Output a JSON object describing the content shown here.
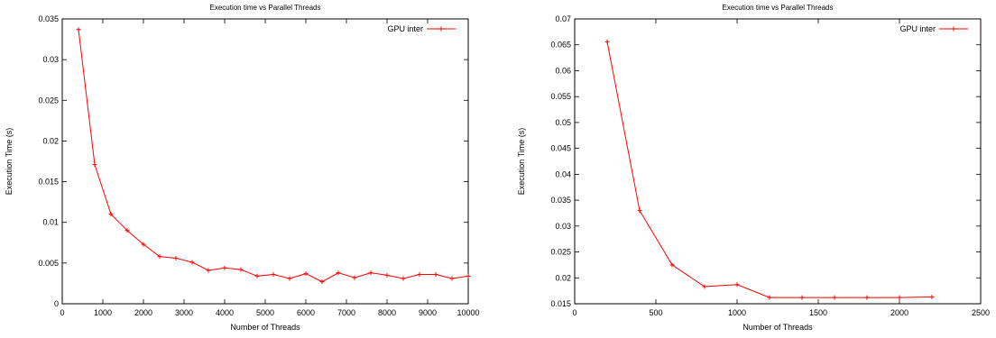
{
  "chart_data": [
    {
      "type": "line",
      "title": "Execution time vs Parallel Threads",
      "xlabel": "Number of Threads",
      "ylabel": "Execution Time (s)",
      "xlim": [
        0,
        10000
      ],
      "ylim": [
        0,
        0.035
      ],
      "xticks": [
        0,
        1000,
        2000,
        3000,
        4000,
        5000,
        6000,
        7000,
        8000,
        9000,
        10000
      ],
      "xtick_labels": [
        "0",
        "1000",
        "2000",
        "3000",
        "4000",
        "5000",
        "6000",
        "7000",
        "8000",
        "9000",
        "10000"
      ],
      "yticks": [
        0,
        0.005,
        0.01,
        0.015,
        0.02,
        0.025,
        0.03,
        0.035
      ],
      "ytick_labels": [
        "0",
        "0.005",
        "0.01",
        "0.015",
        "0.02",
        "0.025",
        "0.03",
        "0.035"
      ],
      "legend_position": "top-right",
      "grid": false,
      "series": [
        {
          "name": "GPU inter",
          "color": "#ff0000",
          "marker": "plus",
          "x": [
            400,
            800,
            1200,
            1600,
            2000,
            2400,
            2800,
            3200,
            3600,
            4000,
            4400,
            4800,
            5200,
            5600,
            6000,
            6400,
            6800,
            7200,
            7600,
            8000,
            8400,
            8800,
            9200,
            9600,
            10000
          ],
          "y": [
            0.0337,
            0.0171,
            0.011,
            0.009,
            0.0073,
            0.0058,
            0.0056,
            0.0051,
            0.0041,
            0.0044,
            0.0042,
            0.0034,
            0.0036,
            0.0031,
            0.0037,
            0.0027,
            0.0038,
            0.0032,
            0.0038,
            0.0035,
            0.0031,
            0.0036,
            0.0036,
            0.0031,
            0.0034
          ]
        }
      ]
    },
    {
      "type": "line",
      "title": "Execution time vs Parallel Threads",
      "xlabel": "Number of Threads",
      "ylabel": "Execution Time (s)",
      "xlim": [
        0,
        2500
      ],
      "ylim": [
        0.015,
        0.07
      ],
      "xticks": [
        0,
        500,
        1000,
        1500,
        2000,
        2500
      ],
      "xtick_labels": [
        "0",
        "500",
        "1000",
        "1500",
        "2000",
        "2500"
      ],
      "yticks": [
        0.015,
        0.02,
        0.025,
        0.03,
        0.035,
        0.04,
        0.045,
        0.05,
        0.055,
        0.06,
        0.065,
        0.07
      ],
      "ytick_labels": [
        "0.015",
        "0.02",
        "0.025",
        "0.03",
        "0.035",
        "0.04",
        "0.045",
        "0.05",
        "0.055",
        "0.06",
        "0.065",
        "0.07"
      ],
      "legend_position": "top-right",
      "grid": false,
      "series": [
        {
          "name": "GPU inter",
          "color": "#ff0000",
          "marker": "plus",
          "x": [
            200,
            400,
            600,
            800,
            1000,
            1200,
            1400,
            1600,
            1800,
            2000,
            2200
          ],
          "y": [
            0.0656,
            0.033,
            0.0225,
            0.0183,
            0.0187,
            0.0162,
            0.0162,
            0.0162,
            0.0162,
            0.0162,
            0.0163
          ]
        }
      ]
    }
  ]
}
